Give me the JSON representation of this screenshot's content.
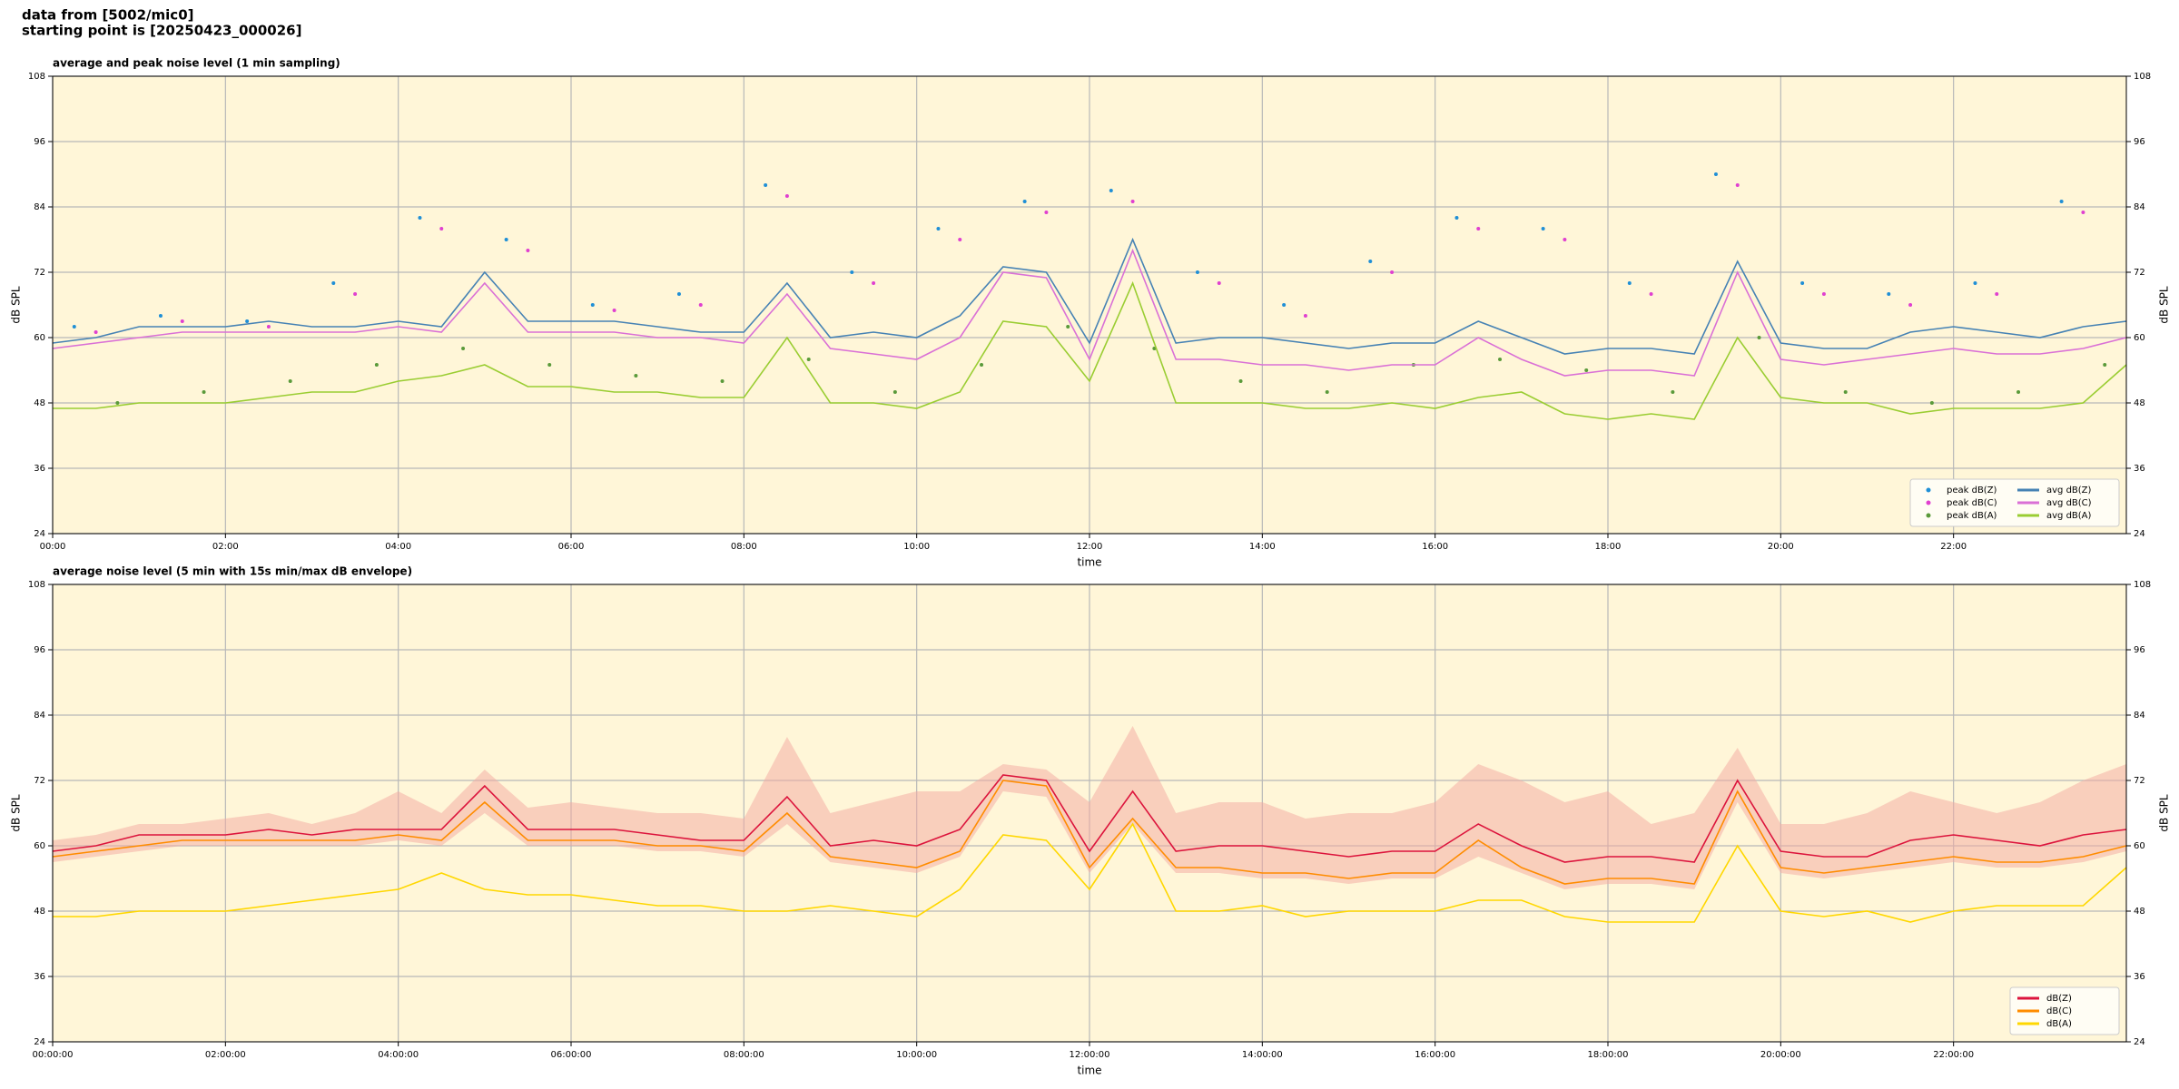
{
  "header": {
    "line1": "data from [5002/mic0]",
    "line2": "starting point is [20250423_000026]"
  },
  "chart_data": [
    {
      "type": "line",
      "title": "average and peak noise level (1 min sampling)",
      "xlabel": "time",
      "ylabel": "dB SPL",
      "x": [
        0,
        0.5,
        1,
        1.5,
        2,
        2.5,
        3,
        3.5,
        4,
        4.5,
        5,
        5.5,
        6,
        6.5,
        7,
        7.5,
        8,
        8.5,
        9,
        9.5,
        10,
        10.5,
        11,
        11.5,
        12,
        12.5,
        13,
        13.5,
        14,
        14.5,
        15,
        15.5,
        16,
        16.5,
        17,
        17.5,
        18,
        18.5,
        19,
        19.5,
        20,
        20.5,
        21,
        21.5,
        22,
        22.5,
        23,
        23.5,
        24
      ],
      "xlim": [
        0,
        24
      ],
      "xticks": [
        {
          "value": 0,
          "label": "00:00"
        },
        {
          "value": 2,
          "label": "02:00"
        },
        {
          "value": 4,
          "label": "04:00"
        },
        {
          "value": 6,
          "label": "06:00"
        },
        {
          "value": 8,
          "label": "08:00"
        },
        {
          "value": 10,
          "label": "10:00"
        },
        {
          "value": 12,
          "label": "12:00"
        },
        {
          "value": 14,
          "label": "14:00"
        },
        {
          "value": 16,
          "label": "16:00"
        },
        {
          "value": 18,
          "label": "18:00"
        },
        {
          "value": 20,
          "label": "20:00"
        },
        {
          "value": 22,
          "label": "22:00"
        }
      ],
      "ylim": [
        24,
        108
      ],
      "yticks": [
        24,
        36,
        48,
        60,
        72,
        84,
        96,
        108
      ],
      "grid": true,
      "legend": "lower right",
      "legend_columns": 2,
      "series": [
        {
          "name": "peak dB(Z)",
          "type": "scatter",
          "color": "#1f8fd6",
          "x": [
            0.25,
            1.25,
            2.25,
            3.25,
            4.25,
            5.25,
            6.25,
            7.25,
            8.25,
            9.25,
            10.25,
            11.25,
            12.25,
            13.25,
            14.25,
            15.25,
            16.25,
            17.25,
            18.25,
            19.25,
            20.25,
            21.25,
            22.25,
            23.25
          ],
          "values": [
            62,
            64,
            63,
            70,
            82,
            78,
            66,
            68,
            88,
            72,
            80,
            85,
            87,
            72,
            66,
            74,
            82,
            80,
            70,
            90,
            70,
            68,
            70,
            85
          ]
        },
        {
          "name": "peak dB(C)",
          "type": "scatter",
          "color": "#e040d0",
          "x": [
            0.5,
            1.5,
            2.5,
            3.5,
            4.5,
            5.5,
            6.5,
            7.5,
            8.5,
            9.5,
            10.5,
            11.5,
            12.5,
            13.5,
            14.5,
            15.5,
            16.5,
            17.5,
            18.5,
            19.5,
            20.5,
            21.5,
            22.5,
            23.5
          ],
          "values": [
            61,
            63,
            62,
            68,
            80,
            76,
            65,
            66,
            86,
            70,
            78,
            83,
            85,
            70,
            64,
            72,
            80,
            78,
            68,
            88,
            68,
            66,
            68,
            83
          ]
        },
        {
          "name": "peak dB(A)",
          "type": "scatter",
          "color": "#5a9a3a",
          "x": [
            0.75,
            1.75,
            2.75,
            3.75,
            4.75,
            5.75,
            6.75,
            7.75,
            8.75,
            9.75,
            10.75,
            11.75,
            12.75,
            13.75,
            14.75,
            15.75,
            16.75,
            17.75,
            18.75,
            19.75,
            20.75,
            21.75,
            22.75,
            23.75
          ],
          "values": [
            48,
            50,
            52,
            55,
            58,
            55,
            53,
            52,
            56,
            50,
            55,
            62,
            58,
            52,
            50,
            55,
            56,
            54,
            50,
            60,
            50,
            48,
            50,
            55
          ]
        },
        {
          "name": "avg dB(Z)",
          "type": "line",
          "color": "#4682b4",
          "values": [
            59,
            60,
            62,
            62,
            62,
            63,
            62,
            62,
            63,
            62,
            72,
            63,
            63,
            63,
            62,
            61,
            61,
            70,
            60,
            61,
            60,
            64,
            73,
            72,
            59,
            78,
            59,
            60,
            60,
            59,
            58,
            59,
            59,
            63,
            60,
            57,
            58,
            58,
            57,
            74,
            59,
            58,
            58,
            61,
            62,
            61,
            60,
            62,
            63
          ]
        },
        {
          "name": "avg dB(C)",
          "type": "line",
          "color": "#da70d6",
          "values": [
            58,
            59,
            60,
            61,
            61,
            61,
            61,
            61,
            62,
            61,
            70,
            61,
            61,
            61,
            60,
            60,
            59,
            68,
            58,
            57,
            56,
            60,
            72,
            71,
            56,
            76,
            56,
            56,
            55,
            55,
            54,
            55,
            55,
            60,
            56,
            53,
            54,
            54,
            53,
            72,
            56,
            55,
            56,
            57,
            58,
            57,
            57,
            58,
            60
          ]
        },
        {
          "name": "avg dB(A)",
          "type": "line",
          "color": "#9acd32",
          "values": [
            47,
            47,
            48,
            48,
            48,
            49,
            50,
            50,
            52,
            53,
            55,
            51,
            51,
            50,
            50,
            49,
            49,
            60,
            48,
            48,
            47,
            50,
            63,
            62,
            52,
            70,
            48,
            48,
            48,
            47,
            47,
            48,
            47,
            49,
            50,
            46,
            45,
            46,
            45,
            60,
            49,
            48,
            48,
            46,
            47,
            47,
            47,
            48,
            55
          ]
        }
      ]
    },
    {
      "type": "line",
      "title": "average noise level (5 min with 15s min/max dB envelope)",
      "xlabel": "time",
      "ylabel": "dB SPL",
      "x": [
        0,
        0.5,
        1,
        1.5,
        2,
        2.5,
        3,
        3.5,
        4,
        4.5,
        5,
        5.5,
        6,
        6.5,
        7,
        7.5,
        8,
        8.5,
        9,
        9.5,
        10,
        10.5,
        11,
        11.5,
        12,
        12.5,
        13,
        13.5,
        14,
        14.5,
        15,
        15.5,
        16,
        16.5,
        17,
        17.5,
        18,
        18.5,
        19,
        19.5,
        20,
        20.5,
        21,
        21.5,
        22,
        22.5,
        23,
        23.5,
        24
      ],
      "xlim": [
        0,
        24
      ],
      "xticks": [
        {
          "value": 0,
          "label": "00:00:00"
        },
        {
          "value": 2,
          "label": "02:00:00"
        },
        {
          "value": 4,
          "label": "04:00:00"
        },
        {
          "value": 6,
          "label": "06:00:00"
        },
        {
          "value": 8,
          "label": "08:00:00"
        },
        {
          "value": 10,
          "label": "10:00:00"
        },
        {
          "value": 12,
          "label": "12:00:00"
        },
        {
          "value": 14,
          "label": "14:00:00"
        },
        {
          "value": 16,
          "label": "16:00:00"
        },
        {
          "value": 18,
          "label": "18:00:00"
        },
        {
          "value": 20,
          "label": "20:00:00"
        },
        {
          "value": 22,
          "label": "22:00:00"
        }
      ],
      "ylim": [
        24,
        108
      ],
      "yticks": [
        24,
        36,
        48,
        60,
        72,
        84,
        96,
        108
      ],
      "grid": true,
      "legend": "lower right",
      "legend_columns": 1,
      "envelope": {
        "color": "#f4a8a0",
        "lower": [
          57,
          58,
          59,
          60,
          60,
          60,
          60,
          60,
          61,
          60,
          66,
          60,
          60,
          60,
          59,
          59,
          58,
          64,
          57,
          56,
          55,
          58,
          70,
          69,
          55,
          64,
          55,
          55,
          54,
          54,
          53,
          54,
          54,
          58,
          55,
          52,
          53,
          53,
          52,
          68,
          55,
          54,
          55,
          56,
          57,
          56,
          56,
          57,
          59
        ],
        "upper": [
          61,
          62,
          64,
          64,
          65,
          66,
          64,
          66,
          70,
          66,
          74,
          67,
          68,
          67,
          66,
          66,
          65,
          80,
          66,
          68,
          70,
          70,
          75,
          74,
          68,
          82,
          66,
          68,
          68,
          65,
          66,
          66,
          68,
          75,
          72,
          68,
          70,
          64,
          66,
          78,
          64,
          64,
          66,
          70,
          68,
          66,
          68,
          72,
          75
        ]
      },
      "series": [
        {
          "name": "dB(Z)",
          "type": "line",
          "color": "#dc143c",
          "values": [
            59,
            60,
            62,
            62,
            62,
            63,
            62,
            63,
            63,
            63,
            71,
            63,
            63,
            63,
            62,
            61,
            61,
            69,
            60,
            61,
            60,
            63,
            73,
            72,
            59,
            70,
            59,
            60,
            60,
            59,
            58,
            59,
            59,
            64,
            60,
            57,
            58,
            58,
            57,
            72,
            59,
            58,
            58,
            61,
            62,
            61,
            60,
            62,
            63
          ]
        },
        {
          "name": "dB(C)",
          "type": "line",
          "color": "#ff8c00",
          "values": [
            58,
            59,
            60,
            61,
            61,
            61,
            61,
            61,
            62,
            61,
            68,
            61,
            61,
            61,
            60,
            60,
            59,
            66,
            58,
            57,
            56,
            59,
            72,
            71,
            56,
            65,
            56,
            56,
            55,
            55,
            54,
            55,
            55,
            61,
            56,
            53,
            54,
            54,
            53,
            70,
            56,
            55,
            56,
            57,
            58,
            57,
            57,
            58,
            60
          ]
        },
        {
          "name": "dB(A)",
          "type": "line",
          "color": "#ffd700",
          "values": [
            47,
            47,
            48,
            48,
            48,
            49,
            50,
            51,
            52,
            55,
            52,
            51,
            51,
            50,
            49,
            49,
            48,
            48,
            49,
            48,
            47,
            52,
            62,
            61,
            52,
            64,
            48,
            48,
            49,
            47,
            48,
            48,
            48,
            50,
            50,
            47,
            46,
            46,
            46,
            60,
            48,
            47,
            48,
            46,
            48,
            49,
            49,
            49,
            56
          ]
        }
      ]
    }
  ]
}
